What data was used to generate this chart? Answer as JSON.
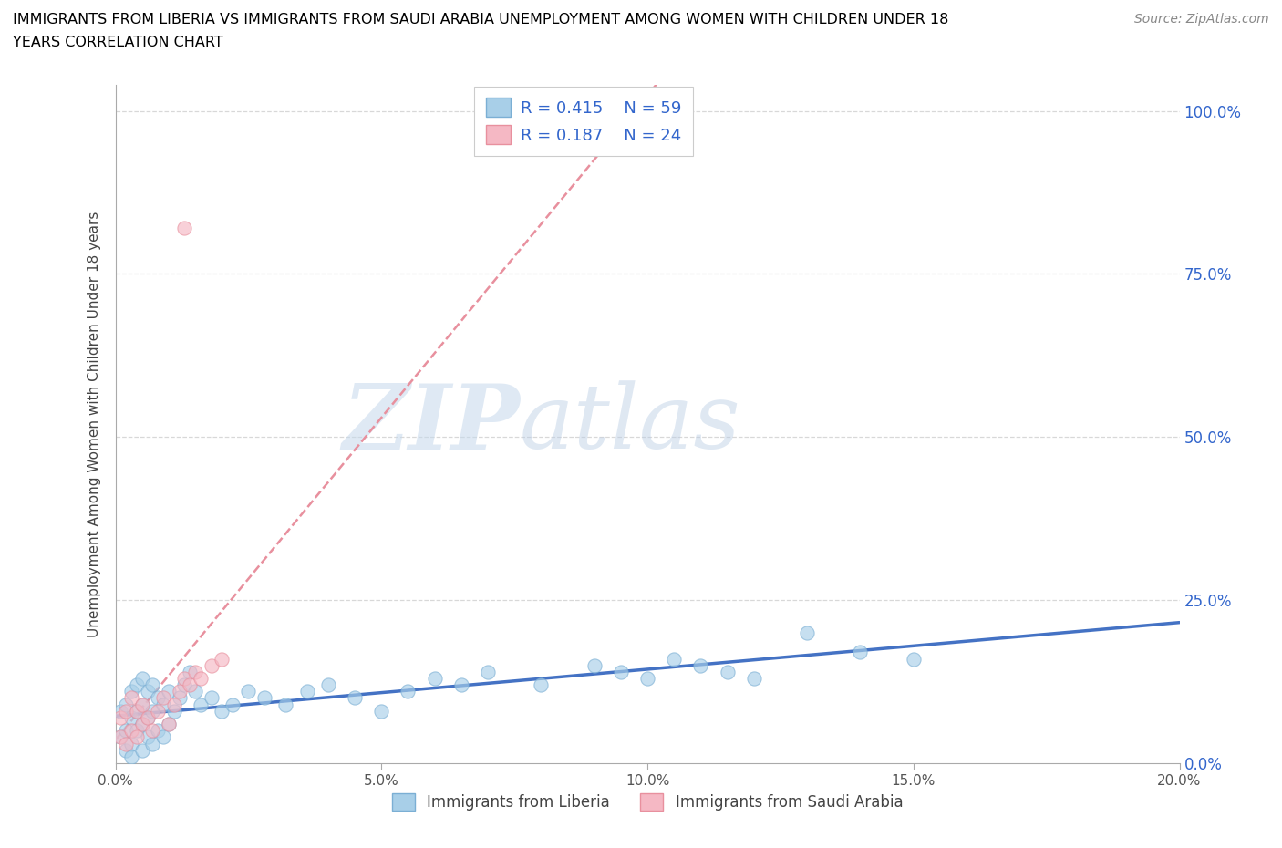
{
  "title_line1": "IMMIGRANTS FROM LIBERIA VS IMMIGRANTS FROM SAUDI ARABIA UNEMPLOYMENT AMONG WOMEN WITH CHILDREN UNDER 18",
  "title_line2": "YEARS CORRELATION CHART",
  "source": "Source: ZipAtlas.com",
  "ylabel": "Unemployment Among Women with Children Under 18 years",
  "xlabel_liberia": "Immigrants from Liberia",
  "xlabel_saudi": "Immigrants from Saudi Arabia",
  "xmin": 0.0,
  "xmax": 0.2,
  "ymin": 0.0,
  "ymax": 1.04,
  "xticks": [
    0.0,
    0.05,
    0.1,
    0.15,
    0.2
  ],
  "xtick_labels": [
    "0.0%",
    "5.0%",
    "10.0%",
    "15.0%",
    "20.0%"
  ],
  "yticks": [
    0.0,
    0.25,
    0.5,
    0.75,
    1.0
  ],
  "ytick_labels": [
    "0.0%",
    "25.0%",
    "50.0%",
    "75.0%",
    "100.0%"
  ],
  "liberia_color": "#a8cfe8",
  "liberia_edge": "#7bafd4",
  "saudi_color": "#f5b8c4",
  "saudi_edge": "#e8909e",
  "trendline_liberia_color": "#4472c4",
  "trendline_saudi_color": "#e8909e",
  "legend_text_color": "#3366cc",
  "axis_tick_color": "#3366cc",
  "watermark_zip": "ZIP",
  "watermark_atlas": "atlas",
  "grid_color": "#d8d8d8",
  "liberia_R": 0.415,
  "liberia_N": 59,
  "saudi_R": 0.187,
  "saudi_N": 24,
  "liberia_x": [
    0.001,
    0.001,
    0.002,
    0.002,
    0.002,
    0.003,
    0.003,
    0.003,
    0.003,
    0.004,
    0.004,
    0.004,
    0.005,
    0.005,
    0.005,
    0.005,
    0.006,
    0.006,
    0.006,
    0.007,
    0.007,
    0.007,
    0.008,
    0.008,
    0.009,
    0.009,
    0.01,
    0.01,
    0.011,
    0.012,
    0.013,
    0.014,
    0.015,
    0.016,
    0.018,
    0.02,
    0.022,
    0.025,
    0.028,
    0.032,
    0.036,
    0.04,
    0.045,
    0.05,
    0.055,
    0.06,
    0.065,
    0.07,
    0.08,
    0.09,
    0.095,
    0.1,
    0.105,
    0.11,
    0.115,
    0.12,
    0.13,
    0.14,
    0.15
  ],
  "liberia_y": [
    0.04,
    0.08,
    0.05,
    0.09,
    0.02,
    0.03,
    0.07,
    0.11,
    0.01,
    0.05,
    0.08,
    0.12,
    0.02,
    0.06,
    0.09,
    0.13,
    0.04,
    0.07,
    0.11,
    0.03,
    0.08,
    0.12,
    0.05,
    0.1,
    0.04,
    0.09,
    0.06,
    0.11,
    0.08,
    0.1,
    0.12,
    0.14,
    0.11,
    0.09,
    0.1,
    0.08,
    0.09,
    0.11,
    0.1,
    0.09,
    0.11,
    0.12,
    0.1,
    0.08,
    0.11,
    0.13,
    0.12,
    0.14,
    0.12,
    0.15,
    0.14,
    0.13,
    0.16,
    0.15,
    0.14,
    0.13,
    0.2,
    0.17,
    0.16
  ],
  "saudi_x": [
    0.001,
    0.001,
    0.002,
    0.002,
    0.003,
    0.003,
    0.004,
    0.004,
    0.005,
    0.005,
    0.006,
    0.007,
    0.008,
    0.009,
    0.01,
    0.011,
    0.012,
    0.013,
    0.014,
    0.015,
    0.016,
    0.018,
    0.02,
    0.013
  ],
  "saudi_y": [
    0.04,
    0.07,
    0.03,
    0.08,
    0.05,
    0.1,
    0.04,
    0.08,
    0.06,
    0.09,
    0.07,
    0.05,
    0.08,
    0.1,
    0.06,
    0.09,
    0.11,
    0.13,
    0.12,
    0.14,
    0.13,
    0.15,
    0.16,
    0.82
  ]
}
